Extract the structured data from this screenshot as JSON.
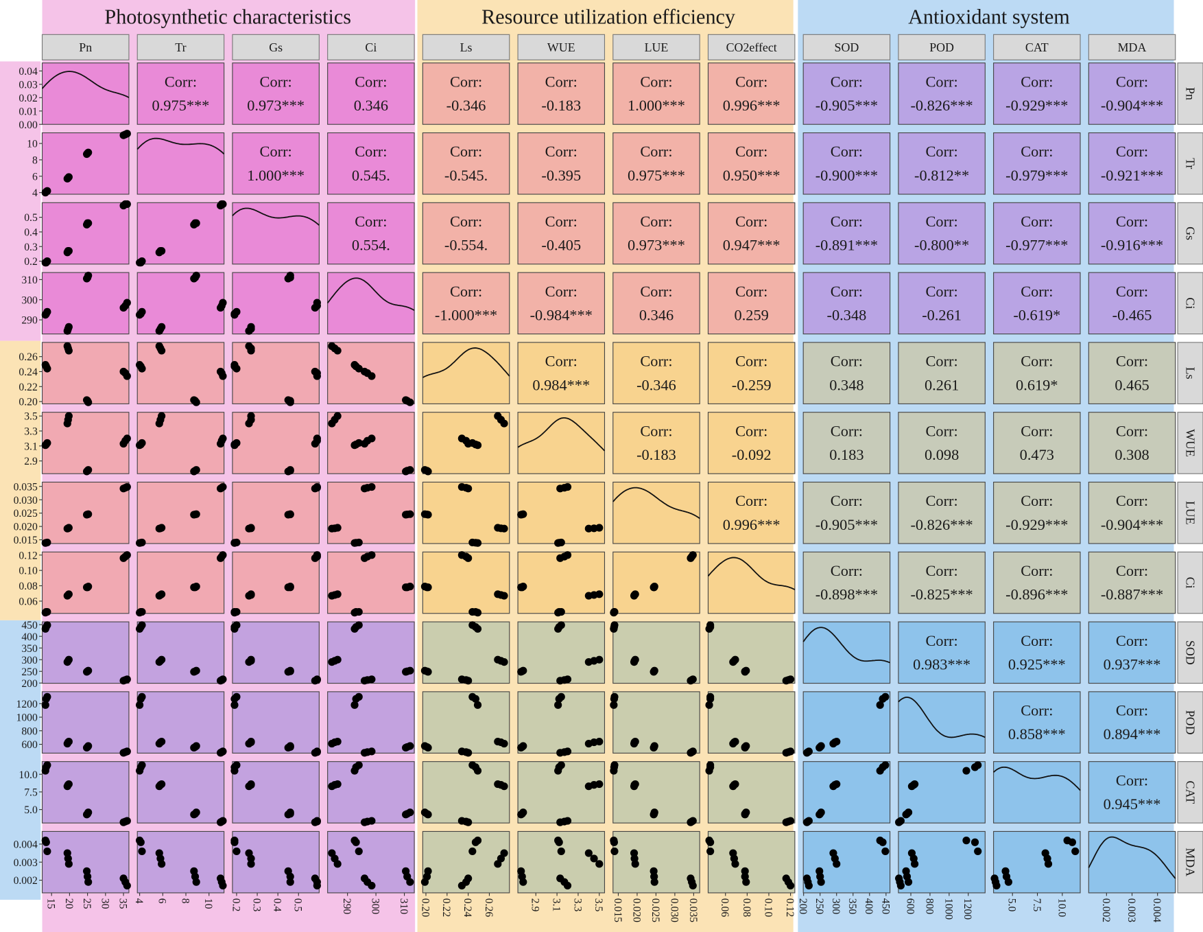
{
  "chart_data": {
    "type": "scatter_matrix",
    "corr_prefix": "Corr:",
    "point_color": "#000000",
    "strip_color": "#d9d9d9",
    "density_ylim": [
      0,
      0.046
    ],
    "density_yticks": [
      {
        "value": 0,
        "label": "0.00"
      },
      0.01,
      0.02,
      0.03,
      0.04
    ],
    "block_colors": [
      [
        "#e98ad7",
        "#f2b2a8",
        "#b9a4e4"
      ],
      [
        "#f1a9b2",
        "#f8d38f",
        "#c7cbb9"
      ],
      [
        "#c3a2df",
        "#cacdae",
        "#8ec3eb"
      ]
    ],
    "groups": [
      {
        "title": "Photosynthetic characteristics",
        "color": "#f5c3e8",
        "variables": [
          {
            "name": "Pn",
            "row_label": "Pn",
            "lim": [
              12.4,
              36.5
            ],
            "ticks": [
              15,
              20,
              25,
              30,
              35
            ],
            "values": [
              13.3,
              13.5,
              13.8,
              19.4,
              19.6,
              19.8,
              24.8,
              25.0,
              25.2,
              35.0,
              35.5,
              36.0
            ]
          },
          {
            "name": "Tr",
            "row_label": "Tr",
            "lim": [
              3.8,
              11.3
            ],
            "ticks": [
              4,
              6,
              8,
              10
            ],
            "values": [
              4.0,
              4.1,
              4.2,
              5.7,
              5.8,
              5.9,
              8.7,
              8.8,
              8.9,
              11.0,
              11.1,
              11.2
            ]
          },
          {
            "name": "Gs",
            "row_label": "Gs",
            "lim": [
              0.18,
              0.6
            ],
            "ticks": [
              0.2,
              0.3,
              0.4,
              0.5
            ],
            "values": [
              0.19,
              0.19,
              0.2,
              0.26,
              0.27,
              0.27,
              0.45,
              0.46,
              0.46,
              0.58,
              0.59,
              0.59
            ]
          },
          {
            "name": "Ci",
            "row_label": "Ci",
            "lim": [
              283,
              313.5
            ],
            "ticks": [
              290,
              300,
              310
            ],
            "values": [
              292.5,
              293,
              294,
              284.5,
              285.5,
              286.5,
              310.5,
              311,
              312,
              296,
              297,
              298.5
            ]
          }
        ]
      },
      {
        "title": "Resource utilization efficiency",
        "color": "#fbe3b5",
        "variables": [
          {
            "name": "Ls",
            "row_label": "Ls",
            "lim": [
              0.197,
              0.279
            ],
            "ticks": [
              {
                "value": 0.2,
                "label": "0.20"
              },
              0.22,
              0.24,
              0.26
            ],
            "values": [
              0.249,
              0.247,
              0.244,
              0.274,
              0.271,
              0.268,
              0.202,
              0.201,
              0.199,
              0.24,
              0.238,
              0.234
            ]
          },
          {
            "name": "WUE",
            "row_label": "WUE",
            "lim": [
              2.73,
              3.55
            ],
            "ticks": [
              2.9,
              3.1,
              3.3,
              3.5
            ],
            "values": [
              3.11,
              3.12,
              3.14,
              3.4,
              3.45,
              3.5,
              2.76,
              2.77,
              2.78,
              3.13,
              3.17,
              3.2
            ]
          },
          {
            "name": "LUE",
            "row_label": "LUE",
            "lim": [
              0.0136,
              0.0366
            ],
            "ticks": [
              0.015,
              {
                "value": 0.02,
                "label": "0.020"
              },
              0.025,
              {
                "value": 0.03,
                "label": "0.030"
              },
              0.035
            ],
            "values": [
              0.0138,
              0.0139,
              0.014,
              0.0192,
              0.0193,
              0.0195,
              0.0244,
              0.0245,
              0.0246,
              0.0342,
              0.0345,
              0.0348
            ]
          },
          {
            "name": "CO2effect",
            "row_label": "Ci",
            "lim": [
              0.044,
              0.124
            ],
            "ticks": [
              0.06,
              0.08,
              {
                "value": 0.1,
                "label": "0.10"
              },
              0.12
            ],
            "values": [
              0.045,
              0.046,
              0.046,
              0.067,
              0.068,
              0.069,
              0.078,
              0.078,
              0.079,
              0.116,
              0.118,
              0.12
            ]
          }
        ]
      },
      {
        "title": "Antioxidant system",
        "color": "#bcdaf4",
        "variables": [
          {
            "name": "SOD",
            "row_label": "SOD",
            "lim": [
              199,
              462
            ],
            "ticks": [
              200,
              250,
              300,
              350,
              400,
              450
            ],
            "values": [
              432,
              440,
              448,
              290,
              295,
              300,
              248,
              250,
              253,
              210,
              213,
              216
            ]
          },
          {
            "name": "POD",
            "row_label": "POD",
            "lim": [
              470,
              1376
            ],
            "ticks": [
              600,
              800,
              1000,
              1200
            ],
            "values": [
              1180,
              1270,
              1300,
              610,
              630,
              640,
              550,
              560,
              575,
              475,
              485,
              495
            ]
          },
          {
            "name": "CAT",
            "row_label": "CAT",
            "lim": [
              3.1,
              11.8
            ],
            "ticks": [
              {
                "value": 5,
                "label": "5.0"
              },
              7.5,
              {
                "value": 10,
                "label": "10.0"
              }
            ],
            "values": [
              10.5,
              11.0,
              11.3,
              8.3,
              8.5,
              8.6,
              4.3,
              4.4,
              4.6,
              3.2,
              3.3,
              3.4
            ]
          },
          {
            "name": "MDA",
            "row_label": "MDA",
            "lim": [
              0.0013,
              0.0047
            ],
            "ticks": [
              0.002,
              0.003,
              0.004
            ],
            "values": [
              0.0042,
              0.0041,
              0.0036,
              0.0035,
              0.0032,
              0.0029,
              0.0025,
              0.0022,
              0.0019,
              0.0021,
              0.0019,
              0.0017
            ]
          }
        ]
      }
    ],
    "correlations": [
      [
        {
          "value": 0.975,
          "label": "0.975***"
        },
        {
          "value": 0.973,
          "label": "0.973***"
        },
        0.346,
        -0.346,
        -0.183,
        {
          "value": 1,
          "label": "1.000***"
        },
        {
          "value": 0.996,
          "label": "0.996***"
        },
        {
          "value": -0.905,
          "label": "-0.905***"
        },
        {
          "value": -0.826,
          "label": "-0.826***"
        },
        {
          "value": -0.929,
          "label": "-0.929***"
        },
        {
          "value": -0.904,
          "label": "-0.904***"
        }
      ],
      [
        {
          "value": 1,
          "label": "1.000***"
        },
        {
          "value": 0.545,
          "label": "0.545."
        },
        {
          "value": -0.545,
          "label": "-0.545."
        },
        -0.395,
        {
          "value": 0.975,
          "label": "0.975***"
        },
        {
          "value": 0.95,
          "label": "0.950***"
        },
        {
          "value": -0.9,
          "label": "-0.900***"
        },
        {
          "value": -0.812,
          "label": "-0.812**"
        },
        {
          "value": -0.979,
          "label": "-0.979***"
        },
        {
          "value": -0.921,
          "label": "-0.921***"
        }
      ],
      [
        {
          "value": 0.554,
          "label": "0.554."
        },
        {
          "value": -0.554,
          "label": "-0.554."
        },
        -0.405,
        {
          "value": 0.973,
          "label": "0.973***"
        },
        {
          "value": 0.947,
          "label": "0.947***"
        },
        {
          "value": -0.891,
          "label": "-0.891***"
        },
        {
          "value": -0.8,
          "label": "-0.800**"
        },
        {
          "value": -0.977,
          "label": "-0.977***"
        },
        {
          "value": -0.916,
          "label": "-0.916***"
        }
      ],
      [
        {
          "value": -1,
          "label": "-1.000***"
        },
        {
          "value": -0.984,
          "label": "-0.984***"
        },
        0.346,
        0.259,
        -0.348,
        -0.261,
        {
          "value": -0.619,
          "label": "-0.619*"
        },
        -0.465
      ],
      [
        {
          "value": 0.984,
          "label": "0.984***"
        },
        -0.346,
        -0.259,
        0.348,
        0.261,
        {
          "value": 0.619,
          "label": "0.619*"
        },
        0.465
      ],
      [
        -0.183,
        -0.092,
        0.183,
        0.098,
        0.473,
        0.308
      ],
      [
        {
          "value": 0.996,
          "label": "0.996***"
        },
        {
          "value": -0.905,
          "label": "-0.905***"
        },
        {
          "value": -0.826,
          "label": "-0.826***"
        },
        {
          "value": -0.929,
          "label": "-0.929***"
        },
        {
          "value": -0.904,
          "label": "-0.904***"
        }
      ],
      [
        {
          "value": -0.898,
          "label": "-0.898***"
        },
        {
          "value": -0.825,
          "label": "-0.825***"
        },
        {
          "value": -0.896,
          "label": "-0.896***"
        },
        {
          "value": -0.887,
          "label": "-0.887***"
        }
      ],
      [
        {
          "value": 0.983,
          "label": "0.983***"
        },
        {
          "value": 0.925,
          "label": "0.925***"
        },
        {
          "value": 0.937,
          "label": "0.937***"
        }
      ],
      [
        {
          "value": 0.858,
          "label": "0.858***"
        },
        {
          "value": 0.894,
          "label": "0.894***"
        }
      ],
      [
        {
          "value": 0.945,
          "label": "0.945***"
        }
      ]
    ]
  }
}
